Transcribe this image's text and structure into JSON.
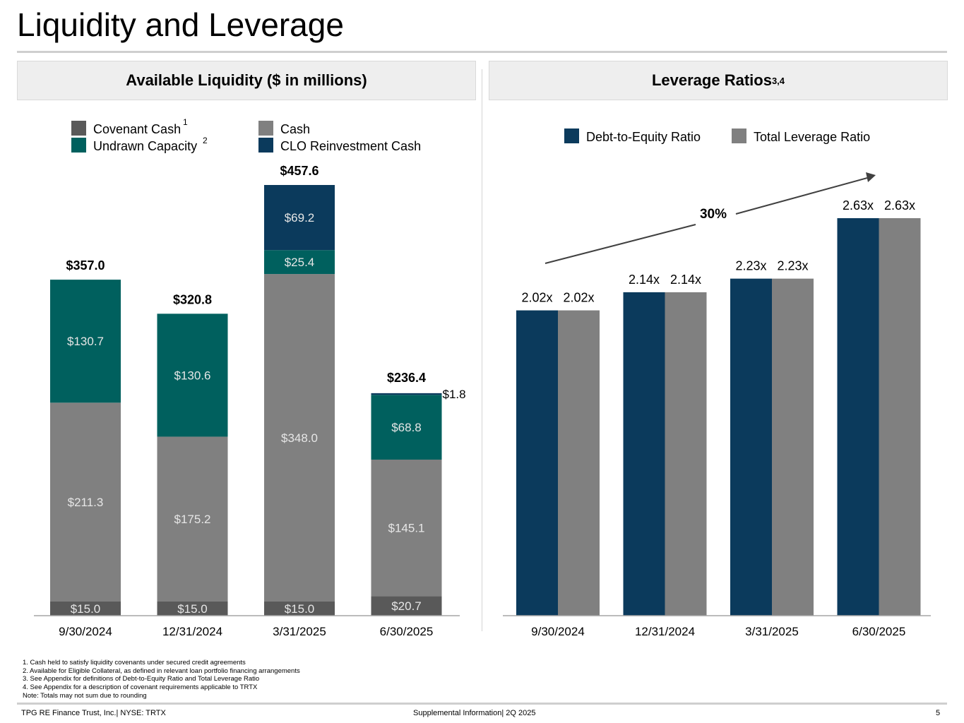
{
  "page": {
    "title": "Liquidity and Leverage",
    "page_number": "5",
    "footer_left": "TPG RE Finance Trust, Inc.| NYSE: TRTX",
    "footer_center": "Supplemental Information| 2Q 2025"
  },
  "left_panel": {
    "heading": "Available Liquidity ($ in millions)"
  },
  "right_panel": {
    "heading": "Leverage Ratios",
    "heading_sup": "3,4"
  },
  "footnotes": [
    "1. Cash held to satisfy liquidity covenants under secured credit agreements",
    "2. Available for Eligible Collateral, as defined in relevant loan portfolio financing arrangements",
    "3. See Appendix for definitions of Debt-to-Equity Ratio and Total Leverage Ratio",
    "4. See Appendix for a description of covenant requirements applicable to TRTX",
    "Note: Totals may not sum due to rounding"
  ],
  "colors": {
    "covenant_cash": "#595959",
    "cash": "#808080",
    "undrawn": "#00605E",
    "clo": "#0B3A5C",
    "debt_to_equity": "#0B3A5C",
    "total_leverage": "#808080"
  },
  "chart_data": [
    {
      "type": "bar",
      "stacked": true,
      "title": "Available Liquidity ($ in millions)",
      "categories": [
        "9/30/2024",
        "12/31/2024",
        "3/31/2025",
        "6/30/2025"
      ],
      "series": [
        {
          "name": "Covenant Cash",
          "sup": "1",
          "values": [
            15.0,
            15.0,
            15.0,
            20.7
          ],
          "labels": [
            "$15.0",
            "$15.0",
            "$15.0",
            "$20.7"
          ]
        },
        {
          "name": "Cash",
          "values": [
            211.3,
            175.2,
            348.0,
            145.1
          ],
          "labels": [
            "$211.3",
            "$175.2",
            "$348.0",
            "$145.1"
          ]
        },
        {
          "name": "Undrawn Capacity",
          "sup": "2",
          "values": [
            130.7,
            130.6,
            25.4,
            68.8
          ],
          "labels": [
            "$130.7",
            "$130.6",
            "$25.4",
            "$68.8"
          ]
        },
        {
          "name": "CLO Reinvestment Cash",
          "values": [
            0,
            0,
            69.2,
            1.8
          ],
          "labels": [
            "",
            "",
            "$69.2",
            "$1.8"
          ]
        }
      ],
      "totals": [
        "$357.0",
        "$320.8",
        "$457.6",
        "$236.4"
      ],
      "ylim": [
        0,
        470
      ],
      "legend": "top"
    },
    {
      "type": "bar",
      "title": "Leverage Ratios",
      "categories": [
        "9/30/2024",
        "12/31/2024",
        "3/31/2025",
        "6/30/2025"
      ],
      "series": [
        {
          "name": "Debt-to-Equity Ratio",
          "values": [
            2.02,
            2.14,
            2.23,
            2.63
          ],
          "labels": [
            "2.02x",
            "2.14x",
            "2.23x",
            "2.63x"
          ]
        },
        {
          "name": "Total Leverage Ratio",
          "values": [
            2.02,
            2.14,
            2.23,
            2.63
          ],
          "labels": [
            "2.02x",
            "2.14x",
            "2.23x",
            "2.63x"
          ]
        }
      ],
      "annotation": "30%",
      "ylim": [
        0,
        2.81
      ],
      "legend": "top"
    }
  ]
}
